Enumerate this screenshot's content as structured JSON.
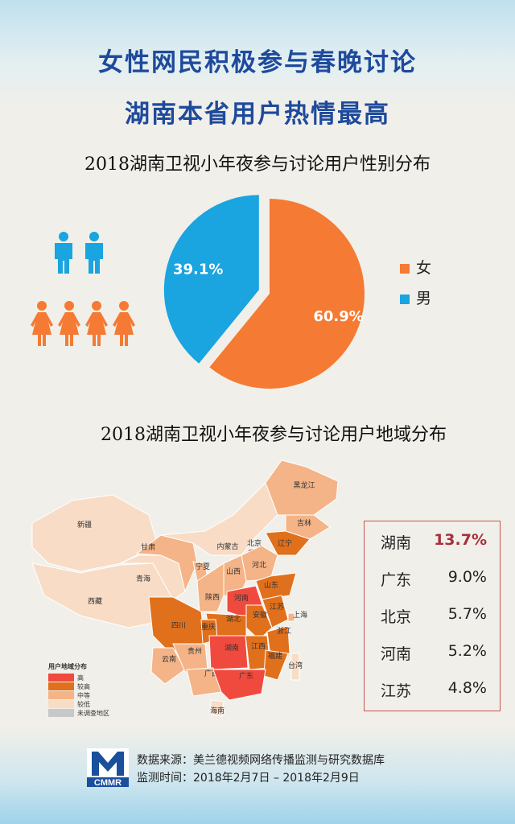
{
  "header": {
    "title_line1": "女性网民积极参与春晚讨论",
    "title_line2": "湖南本省用户热情最高"
  },
  "colors": {
    "female": "#f57a33",
    "male": "#1aa4e0",
    "title": "#1e4a9c",
    "map_high": "#f04a3e",
    "map_higher": "#e0701c",
    "map_mid": "#f4b487",
    "map_low": "#f8dcc6",
    "map_none": "#c8c8c8",
    "highlight": "#a8303a"
  },
  "chart_data": [
    {
      "type": "pie",
      "title": "2018湖南卫视小年夜参与讨论用户性别分布",
      "labels": [
        "女",
        "男"
      ],
      "values": [
        60.9,
        39.1
      ],
      "value_labels": [
        "60.9%",
        "39.1%"
      ],
      "legend_position": "right",
      "exploded": true,
      "icons": [
        "male-figure-icon x2",
        "female-figure-icon x4"
      ]
    },
    {
      "type": "table",
      "title": "2018湖南卫视小年夜参与讨论用户地域分布",
      "map_legend": {
        "title": "用户地域分布",
        "levels": [
          "高",
          "较高",
          "中等",
          "较低",
          "未调查地区"
        ]
      },
      "map_labels": [
        "新疆",
        "西藏",
        "青海",
        "甘肃",
        "宁夏",
        "内蒙古",
        "黑龙江",
        "吉林",
        "辽宁",
        "北京",
        "天津",
        "河北",
        "山西",
        "陕西",
        "山东",
        "河南",
        "江苏",
        "安徽",
        "上海",
        "湖北",
        "四川",
        "重庆",
        "浙江",
        "云南",
        "贵州",
        "湖南",
        "江西",
        "福建",
        "台湾",
        "广西",
        "广东",
        "海南"
      ],
      "rows": [
        {
          "region": "湖南",
          "value": "13.7%"
        },
        {
          "region": "广东",
          "value": "9.0%"
        },
        {
          "region": "北京",
          "value": "5.7%"
        },
        {
          "region": "河南",
          "value": "5.2%"
        },
        {
          "region": "江苏",
          "value": "4.8%"
        }
      ]
    }
  ],
  "footer": {
    "logo_text": "CMMR",
    "source": "数据来源：美兰德视频网络传播监测与研究数据库",
    "period": "监测时间：2018年2月7日 – 2018年2月9日"
  }
}
